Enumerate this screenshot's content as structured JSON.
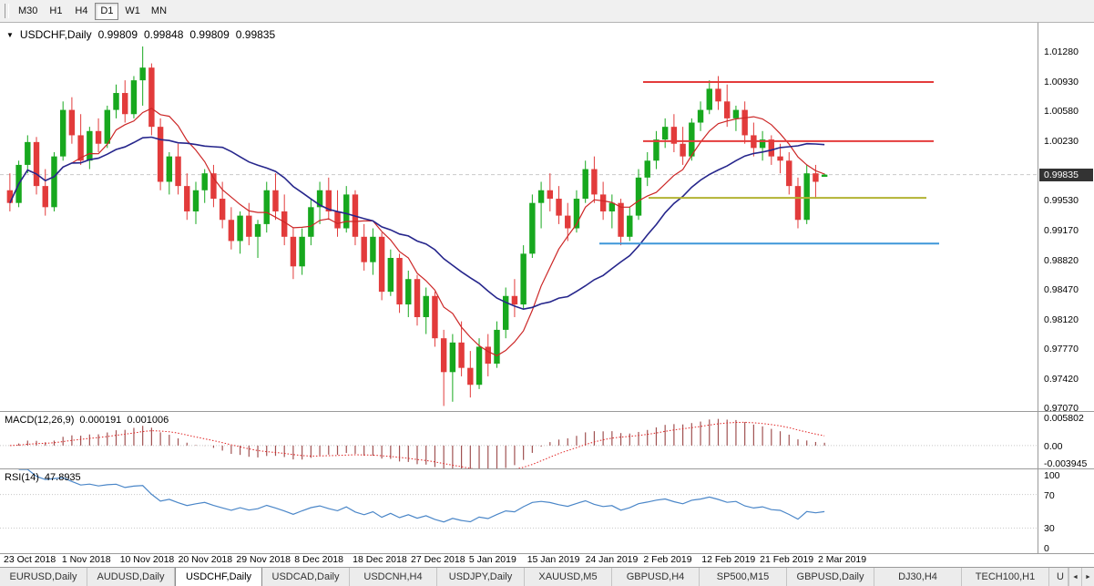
{
  "toolbar": {
    "timeframes": [
      "M30",
      "H1",
      "H4",
      "D1",
      "W1",
      "MN"
    ],
    "active": "D1"
  },
  "chart": {
    "title": {
      "marker": "▼",
      "symbol": "USDCHF,Daily",
      "open": "0.99809",
      "high": "0.99848",
      "low": "0.99809",
      "close": "0.99835"
    },
    "price_axis_labels": [
      "1.01280",
      "1.00930",
      "1.00580",
      "1.00230",
      "0.99530",
      "0.99170",
      "0.98820",
      "0.98470",
      "0.98120",
      "0.97770",
      "0.97420",
      "0.97070"
    ],
    "current_price": "0.99835",
    "levels": [
      {
        "name": "resistance-upper",
        "price": 1.0093,
        "color": "#e43b3b",
        "from": 0.62,
        "to": 0.9,
        "width": 2
      },
      {
        "name": "resistance-lower",
        "price": 1.0023,
        "color": "#e43b3b",
        "from": 0.62,
        "to": 0.9,
        "width": 2
      },
      {
        "name": "support-olive",
        "price": 0.9956,
        "color": "#b2b232",
        "from": 0.625,
        "to": 0.893,
        "width": 2
      },
      {
        "name": "support-blue",
        "price": 0.9902,
        "color": "#3f97d9",
        "from": 0.578,
        "to": 0.905,
        "width": 2
      }
    ]
  },
  "macd_panel": {
    "title": "MACD(12,26,9)",
    "macd_value": "0.000191",
    "signal_value": "0.001006",
    "axis_labels": [
      "0.005802",
      "0.00",
      "-0.003945"
    ],
    "range": [
      -0.003945,
      0.005802
    ]
  },
  "rsi_panel": {
    "title": "RSI(14)",
    "value": "47.8935",
    "axis_labels": [
      "100",
      "70",
      "30",
      "0"
    ],
    "levels": [
      70,
      30
    ]
  },
  "date_axis": [
    "23 Oct 2018",
    "1 Nov 2018",
    "10 Nov 2018",
    "20 Nov 2018",
    "29 Nov 2018",
    "8 Dec 2018",
    "18 Dec 2018",
    "27 Dec 2018",
    "5 Jan 2019",
    "15 Jan 2019",
    "24 Jan 2019",
    "2 Feb 2019",
    "12 Feb 2019",
    "21 Feb 2019",
    "2 Mar 2019"
  ],
  "tabs": {
    "items": [
      "EURUSD,Daily",
      "AUDUSD,Daily",
      "USDCHF,Daily",
      "USDCAD,Daily",
      "USDCNH,H4",
      "USDJPY,Daily",
      "XAUUSD,M5",
      "GBPUSD,H4",
      "SP500,M15",
      "GBPUSD,Daily",
      "DJ30,H4",
      "TECH100,H1",
      "U"
    ],
    "active_index": 2,
    "scroll_left_icon": "◄",
    "scroll_right_icon": "►"
  },
  "colors": {
    "bull": "#17a81e",
    "bear": "#e23b3b",
    "ma_fast": "#cc2626",
    "ma_slow": "#26268c",
    "macd_histogram": "#a05252",
    "macd_signal": "#e02020",
    "rsi_line": "#4a86c8",
    "badge_bg": "#333333",
    "grid_dotted": "#c8c8c8",
    "current_price_line": "#c9c9c9"
  },
  "chart_data": {
    "type": "candlestick",
    "symbol": "USDCHF",
    "timeframe": "Daily",
    "title": "USDCHF,Daily",
    "ylim": [
      0.9704,
      1.0163
    ],
    "x_tick_labels": [
      "23 Oct 2018",
      "1 Nov 2018",
      "10 Nov 2018",
      "20 Nov 2018",
      "29 Nov 2018",
      "8 Dec 2018",
      "18 Dec 2018",
      "27 Dec 2018",
      "5 Jan 2019",
      "15 Jan 2019",
      "24 Jan 2019",
      "2 Feb 2019",
      "12 Feb 2019",
      "21 Feb 2019",
      "2 Mar 2019"
    ],
    "ohlc": [
      [
        0.9965,
        0.9985,
        0.994,
        0.995
      ],
      [
        0.995,
        1.0,
        0.9945,
        0.9995
      ],
      [
        0.9995,
        1.003,
        0.9985,
        1.0022
      ],
      [
        1.0022,
        1.0028,
        0.996,
        0.997
      ],
      [
        0.997,
        0.999,
        0.9935,
        0.9945
      ],
      [
        0.9945,
        1.001,
        0.994,
        1.0005
      ],
      [
        1.0005,
        1.007,
        1.0,
        1.006
      ],
      [
        1.006,
        1.0075,
        1.002,
        1.003
      ],
      [
        1.003,
        1.0055,
        0.9995,
        1.0
      ],
      [
        1.0,
        1.004,
        0.999,
        1.0035
      ],
      [
        1.0035,
        1.005,
        1.001,
        1.002
      ],
      [
        1.002,
        1.0065,
        1.0015,
        1.006
      ],
      [
        1.006,
        1.009,
        1.005,
        1.008
      ],
      [
        1.008,
        1.0095,
        1.0045,
        1.0055
      ],
      [
        1.0055,
        1.01,
        1.005,
        1.0095
      ],
      [
        1.0095,
        1.0135,
        1.0065,
        1.011
      ],
      [
        1.011,
        1.0115,
        1.003,
        1.004
      ],
      [
        1.004,
        1.005,
        0.9965,
        0.9975
      ],
      [
        0.9975,
        1.001,
        0.996,
        1.0005
      ],
      [
        1.0005,
        1.002,
        0.996,
        0.997
      ],
      [
        0.997,
        0.9985,
        0.993,
        0.994
      ],
      [
        0.994,
        0.9975,
        0.9925,
        0.9965
      ],
      [
        0.9965,
        0.999,
        0.995,
        0.9985
      ],
      [
        0.9985,
        0.9995,
        0.9945,
        0.9955
      ],
      [
        0.9955,
        0.9975,
        0.992,
        0.993
      ],
      [
        0.993,
        0.9945,
        0.9895,
        0.9905
      ],
      [
        0.9905,
        0.994,
        0.989,
        0.9935
      ],
      [
        0.9935,
        0.995,
        0.99,
        0.991
      ],
      [
        0.991,
        0.993,
        0.9885,
        0.9925
      ],
      [
        0.9925,
        0.9975,
        0.9915,
        0.9965
      ],
      [
        0.9965,
        0.9985,
        0.993,
        0.994
      ],
      [
        0.994,
        0.996,
        0.99,
        0.991
      ],
      [
        0.991,
        0.992,
        0.986,
        0.9875
      ],
      [
        0.9875,
        0.992,
        0.9865,
        0.991
      ],
      [
        0.991,
        0.9955,
        0.99,
        0.9945
      ],
      [
        0.9945,
        0.9975,
        0.9925,
        0.9965
      ],
      [
        0.9965,
        0.998,
        0.993,
        0.994
      ],
      [
        0.994,
        0.9965,
        0.991,
        0.992
      ],
      [
        0.992,
        0.997,
        0.9915,
        0.996
      ],
      [
        0.996,
        0.9965,
        0.99,
        0.991
      ],
      [
        0.991,
        0.9925,
        0.987,
        0.988
      ],
      [
        0.988,
        0.992,
        0.9865,
        0.991
      ],
      [
        0.991,
        0.9915,
        0.9835,
        0.9845
      ],
      [
        0.9845,
        0.9895,
        0.984,
        0.9885
      ],
      [
        0.9885,
        0.989,
        0.982,
        0.983
      ],
      [
        0.983,
        0.987,
        0.9815,
        0.986
      ],
      [
        0.986,
        0.9865,
        0.9805,
        0.9815
      ],
      [
        0.9815,
        0.985,
        0.9795,
        0.984
      ],
      [
        0.984,
        0.9845,
        0.978,
        0.979
      ],
      [
        0.979,
        0.98,
        0.971,
        0.975
      ],
      [
        0.975,
        0.9795,
        0.9715,
        0.9785
      ],
      [
        0.9785,
        0.981,
        0.9745,
        0.9755
      ],
      [
        0.9755,
        0.9775,
        0.972,
        0.9735
      ],
      [
        0.9735,
        0.979,
        0.973,
        0.978
      ],
      [
        0.978,
        0.9795,
        0.9745,
        0.976
      ],
      [
        0.976,
        0.981,
        0.9755,
        0.98
      ],
      [
        0.98,
        0.985,
        0.979,
        0.984
      ],
      [
        0.984,
        0.986,
        0.9815,
        0.983
      ],
      [
        0.983,
        0.99,
        0.9825,
        0.989
      ],
      [
        0.989,
        0.996,
        0.9885,
        0.995
      ],
      [
        0.995,
        0.9975,
        0.992,
        0.9965
      ],
      [
        0.9965,
        0.9985,
        0.994,
        0.9955
      ],
      [
        0.9955,
        0.997,
        0.9925,
        0.9935
      ],
      [
        0.9935,
        0.995,
        0.9905,
        0.992
      ],
      [
        0.992,
        0.9965,
        0.9915,
        0.9955
      ],
      [
        0.9955,
        1.0,
        0.995,
        0.999
      ],
      [
        0.999,
        1.0005,
        0.995,
        0.996
      ],
      [
        0.996,
        0.9975,
        0.993,
        0.994
      ],
      [
        0.994,
        0.996,
        0.992,
        0.995
      ],
      [
        0.995,
        0.9955,
        0.99,
        0.991
      ],
      [
        0.991,
        0.9945,
        0.9905,
        0.9935
      ],
      [
        0.9935,
        0.999,
        0.993,
        0.998
      ],
      [
        0.998,
        1.001,
        0.997,
        1.0
      ],
      [
        1.0,
        1.0035,
        0.999,
        1.0025
      ],
      [
        1.0025,
        1.005,
        1.0015,
        1.004
      ],
      [
        1.004,
        1.0055,
        1.001,
        1.002
      ],
      [
        1.002,
        1.004,
        0.9995,
        1.0005
      ],
      [
        1.0005,
        1.005,
        1.0,
        1.0045
      ],
      [
        1.0045,
        1.007,
        1.0035,
        1.006
      ],
      [
        1.006,
        1.0095,
        1.0055,
        1.0085
      ],
      [
        1.0085,
        1.01,
        1.006,
        1.007
      ],
      [
        1.007,
        1.009,
        1.004,
        1.005
      ],
      [
        1.005,
        1.0065,
        1.0035,
        1.006
      ],
      [
        1.006,
        1.007,
        1.002,
        1.003
      ],
      [
        1.003,
        1.0045,
        1.0005,
        1.0015
      ],
      [
        1.0015,
        1.0035,
        1.0,
        1.0025
      ],
      [
        1.0025,
        1.003,
        0.9995,
        1.0005
      ],
      [
        1.0005,
        1.002,
        0.9985,
        1.0
      ],
      [
        1.0,
        1.001,
        0.996,
        0.997
      ],
      [
        0.997,
        0.998,
        0.992,
        0.993
      ],
      [
        0.993,
        0.9995,
        0.9925,
        0.9985
      ],
      [
        0.9985,
        0.9995,
        0.9955,
        0.9975
      ],
      [
        0.99809,
        0.99848,
        0.99809,
        0.99835
      ]
    ],
    "overlays": [
      {
        "name": "ma-fast",
        "type": "sma",
        "period": 8,
        "color": "#cc2626"
      },
      {
        "name": "ma-slow",
        "type": "sma",
        "period": 20,
        "color": "#26268c"
      }
    ],
    "indicators": [
      {
        "name": "MACD",
        "fast": 12,
        "slow": 26,
        "signal": 9,
        "current": [
          "0.000191",
          "0.001006"
        ],
        "axis_range": [
          -0.003945,
          0.005802
        ]
      },
      {
        "name": "RSI",
        "period": 14,
        "current": "47.8935",
        "levels": [
          70,
          30
        ],
        "axis_range": [
          0,
          100
        ]
      }
    ]
  }
}
